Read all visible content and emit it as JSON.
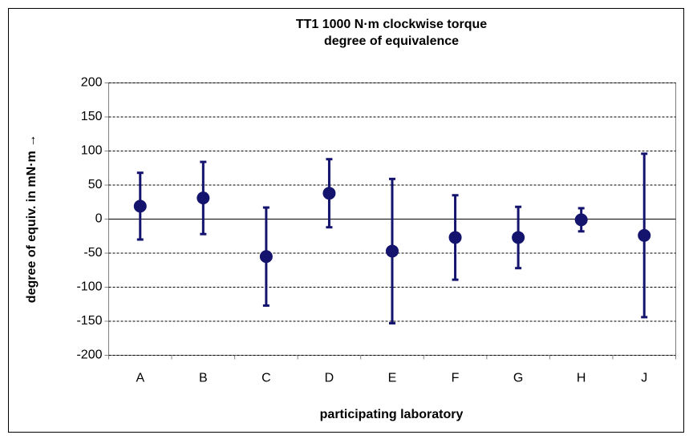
{
  "chart_data": {
    "type": "errorbar",
    "title": [
      "TT1 1000 N·m clockwise torque",
      "degree of equivalence"
    ],
    "x_label": "participating laboratory",
    "y_label": "degree of equiv. in mN·m →",
    "categories": [
      "A",
      "B",
      "C",
      "D",
      "E",
      "F",
      "G",
      "H",
      "J"
    ],
    "values": [
      19,
      31,
      -55,
      38,
      -47,
      -27,
      -27,
      -1,
      -24
    ],
    "errors": [
      49,
      53,
      72,
      50,
      106,
      62,
      45,
      17,
      120
    ],
    "color": "#14146e",
    "ylim": [
      -200,
      200
    ],
    "yticks": [
      -200,
      -150,
      -100,
      -50,
      0,
      50,
      100,
      150,
      200
    ],
    "grid": true
  }
}
